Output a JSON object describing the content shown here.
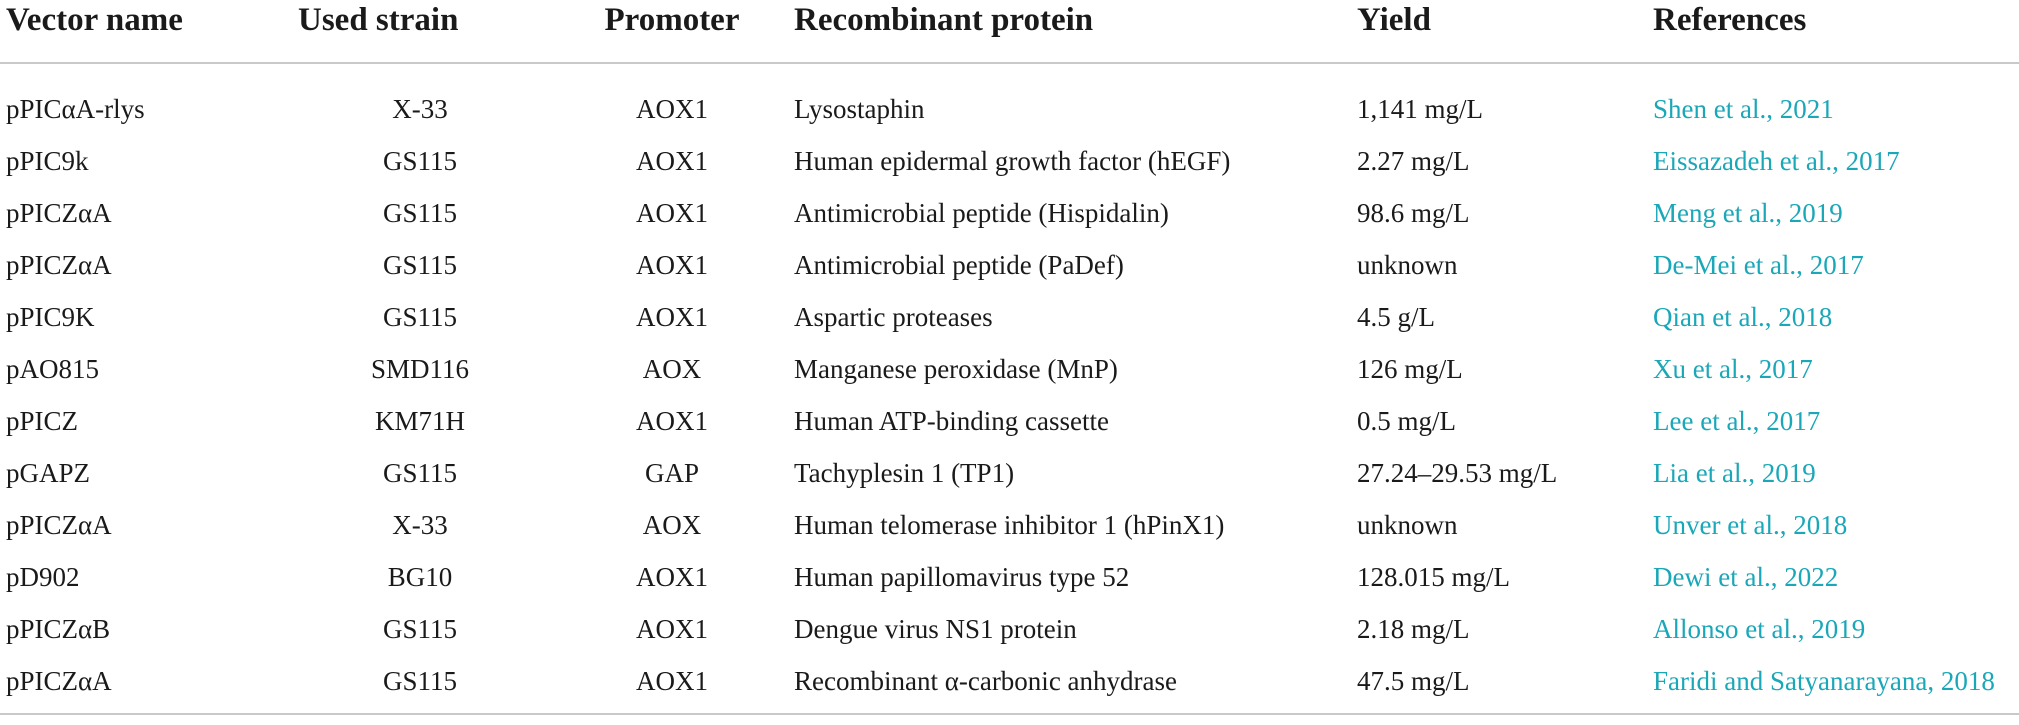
{
  "headers": [
    "Vector name",
    "Used strain",
    "Promoter",
    "Recombinant protein",
    "Yield",
    "References"
  ],
  "rows": [
    {
      "vector": "pPICαA-rlys",
      "strain": "X-33",
      "promoter": "AOX1",
      "protein": "Lysostaphin",
      "yield": "1,141 mg/L",
      "ref_author": "Shen et al.,",
      "ref_year": "2021"
    },
    {
      "vector": "pPIC9k",
      "strain": "GS115",
      "promoter": "AOX1",
      "protein": "Human epidermal growth factor (hEGF)",
      "yield": "2.27 mg/L",
      "ref_author": "Eissazadeh et al.,",
      "ref_year": "2017"
    },
    {
      "vector": "pPICZαA",
      "strain": "GS115",
      "promoter": "AOX1",
      "protein": "Antimicrobial peptide (Hispidalin)",
      "yield": "98.6 mg/L",
      "ref_author": "Meng et al.,",
      "ref_year": "2019"
    },
    {
      "vector": "pPICZαA",
      "strain": "GS115",
      "promoter": "AOX1",
      "protein": "Antimicrobial peptide (PaDef)",
      "yield": "unknown",
      "ref_author": "De-Mei et al.,",
      "ref_year": "2017"
    },
    {
      "vector": "pPIC9K",
      "strain": "GS115",
      "promoter": "AOX1",
      "protein": "Aspartic proteases",
      "yield": "4.5 g/L",
      "ref_author": "Qian et al.,",
      "ref_year": "2018"
    },
    {
      "vector": "pAO815",
      "strain": "SMD116",
      "promoter": "AOX",
      "protein": "Manganese peroxidase (MnP)",
      "yield": "126 mg/L",
      "ref_author": "Xu et al.,",
      "ref_year": "2017"
    },
    {
      "vector": "pPICZ",
      "strain": "KM71H",
      "promoter": "AOX1",
      "protein": "Human ATP-binding cassette",
      "yield": "0.5 mg/L",
      "ref_author": "Lee et al.,",
      "ref_year": "2017"
    },
    {
      "vector": "pGAPZ",
      "strain": "GS115",
      "promoter": "GAP",
      "protein": "Tachyplesin 1 (TP1)",
      "yield": "27.24–29.53 mg/L",
      "ref_author": "Lia et al.,",
      "ref_year": "2019"
    },
    {
      "vector": "pPICZαA",
      "strain": "X-33",
      "promoter": "AOX",
      "protein": "Human telomerase inhibitor 1 (hPinX1)",
      "yield": "unknown",
      "ref_author": "Unver et al.,",
      "ref_year": "2018"
    },
    {
      "vector": "pD902",
      "strain": "BG10",
      "promoter": "AOX1",
      "protein": "Human papillomavirus type 52",
      "yield": "128.015 mg/L",
      "ref_author": "Dewi et al.,",
      "ref_year": "2022"
    },
    {
      "vector": "pPICZαB",
      "strain": "GS115",
      "promoter": "AOX1",
      "protein": "Dengue virus NS1 protein",
      "yield": "2.18 mg/L",
      "ref_author": "Allonso et al.,",
      "ref_year": "2019"
    },
    {
      "vector": "pPICZαA",
      "strain": "GS115",
      "promoter": "AOX1",
      "protein": "Recombinant α-carbonic anhydrase",
      "yield": "47.5 mg/L",
      "ref_author": "Faridi and Satyanarayana,",
      "ref_year": "2018"
    }
  ],
  "link_color": "#1aa7b8"
}
